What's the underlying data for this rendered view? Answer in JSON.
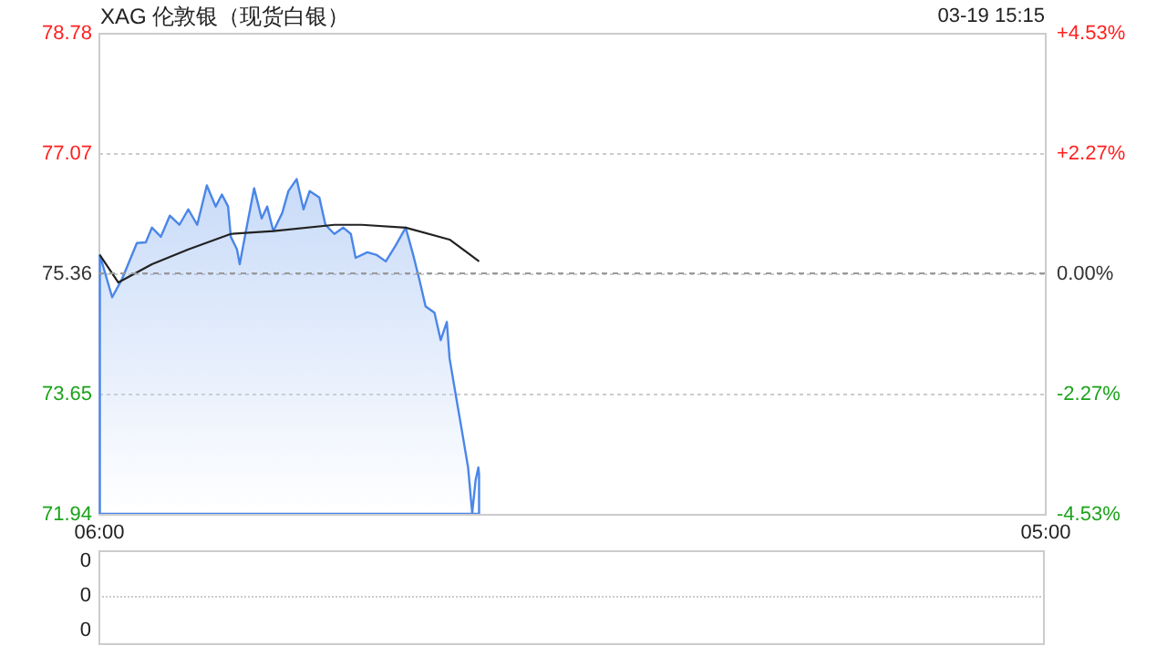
{
  "chart_data": [
    {
      "type": "line",
      "title": "XAG 伦敦银（现货白银）",
      "annotations": [
        "03-19 15:15"
      ],
      "xlim": [
        "--03-19T06:00",
        "--03-20T05:00"
      ],
      "xticks": [
        {
          "value": "--03-19T06:00",
          "label": "06:00"
        },
        {
          "value": "--03-20T05:00",
          "label": "05:00"
        }
      ],
      "ylim": [
        71.94,
        78.78
      ],
      "yticks": [
        71.94,
        73.65,
        75.36,
        77.07,
        78.78
      ],
      "y2lim": [
        -4.53,
        4.53
      ],
      "y2ticks": [
        {
          "value": -4.53,
          "label": "-4.53%"
        },
        {
          "value": -2.27,
          "label": "-2.27%"
        },
        {
          "value": 0,
          "label": "0.00%"
        },
        {
          "value": 2.27,
          "label": "+2.27%"
        },
        {
          "value": 4.53,
          "label": "+4.53%"
        }
      ],
      "grid": "y",
      "ref_lines": [
        {
          "axis": "y2",
          "value": 0,
          "color": "#999999",
          "line_style": "dashed"
        }
      ],
      "series": [
        {
          "type": "area",
          "color": "#4a86e8",
          "x": [
            "--03-19T06:02",
            "--03-19T06:20",
            "--03-19T06:34",
            "--03-19T06:56",
            "--03-19T07:09",
            "--03-19T07:18",
            "--03-19T07:31",
            "--03-19T07:44",
            "--03-19T07:58",
            "--03-19T08:11",
            "--03-19T08:24",
            "--03-19T08:38",
            "--03-19T08:51",
            "--03-19T09:00",
            "--03-19T09:09",
            "--03-19T09:13",
            "--03-19T09:22",
            "--03-19T09:26",
            "--03-19T09:35",
            "--03-19T09:47",
            "--03-19T09:58",
            "--03-19T10:06",
            "--03-19T10:15",
            "--03-19T10:28",
            "--03-19T10:37",
            "--03-19T10:49",
            "--03-19T10:59",
            "--03-19T11:08",
            "--03-19T11:22",
            "--03-19T11:31",
            "--03-19T11:44",
            "--03-19T11:57",
            "--03-19T12:08",
            "--03-19T12:15",
            "--03-19T12:32",
            "--03-19T12:46",
            "--03-19T12:59",
            "--03-19T13:13",
            "--03-19T13:28",
            "--03-19T13:39",
            "--03-19T13:48",
            "--03-19T13:57",
            "--03-19T14:10",
            "--03-19T14:19",
            "--03-19T14:28",
            "--03-19T14:32",
            "--03-19T14:41",
            "--03-19T14:50",
            "--03-19T14:59",
            "--03-19T15:05",
            "--03-19T15:10",
            "--03-19T15:14",
            "--03-19T15:15"
          ],
          "values": [
            75.62,
            75.02,
            75.27,
            75.79,
            75.8,
            76.01,
            75.88,
            76.18,
            76.05,
            76.27,
            76.05,
            76.61,
            76.31,
            76.48,
            76.31,
            75.88,
            75.7,
            75.49,
            75.96,
            76.57,
            76.14,
            76.31,
            75.96,
            76.22,
            76.53,
            76.7,
            76.27,
            76.53,
            76.44,
            76.05,
            75.92,
            76.01,
            75.92,
            75.58,
            75.66,
            75.62,
            75.53,
            75.75,
            76.01,
            75.62,
            75.27,
            74.89,
            74.8,
            74.41,
            74.67,
            74.15,
            73.63,
            73.12,
            72.6,
            71.95,
            72.42,
            72.6,
            72.5
          ]
        },
        {
          "color": "#222222",
          "x": [
            "--03-19T06:02",
            "--03-19T06:29",
            "--03-19T07:18",
            "--03-19T08:11",
            "--03-19T09:13",
            "--03-19T10:15",
            "--03-19T11:44",
            "--03-19T12:24",
            "--03-19T13:28",
            "--03-19T14:32",
            "--03-19T15:15"
          ],
          "values": [
            75.62,
            75.23,
            75.49,
            75.7,
            75.92,
            75.96,
            76.05,
            76.05,
            76.01,
            75.84,
            75.53
          ]
        }
      ]
    },
    {
      "type": "other",
      "annotations": [
        "0",
        "0",
        "0"
      ]
    }
  ]
}
